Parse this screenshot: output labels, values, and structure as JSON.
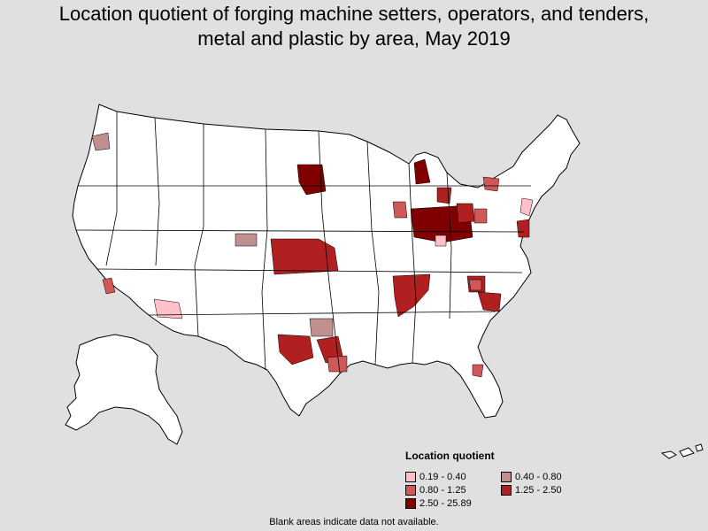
{
  "title_line1": "Location quotient of forging machine setters, operators, and tenders,",
  "title_line2": "metal and plastic by area, May 2019",
  "legend": {
    "title": "Location quotient",
    "items": [
      {
        "label": "0.19 - 0.40",
        "color": "#ffc0c8"
      },
      {
        "label": "0.40 - 0.80",
        "color": "#c09090"
      },
      {
        "label": "0.80 - 1.25",
        "color": "#d05858"
      },
      {
        "label": "1.25 - 2.50",
        "color": "#b02020"
      },
      {
        "label": "2.50 - 25.89",
        "color": "#800000"
      }
    ]
  },
  "footnote": "Blank areas indicate data not available.",
  "colors": {
    "background": "#e0e0e0",
    "land": "#ffffff",
    "border": "#000000"
  }
}
